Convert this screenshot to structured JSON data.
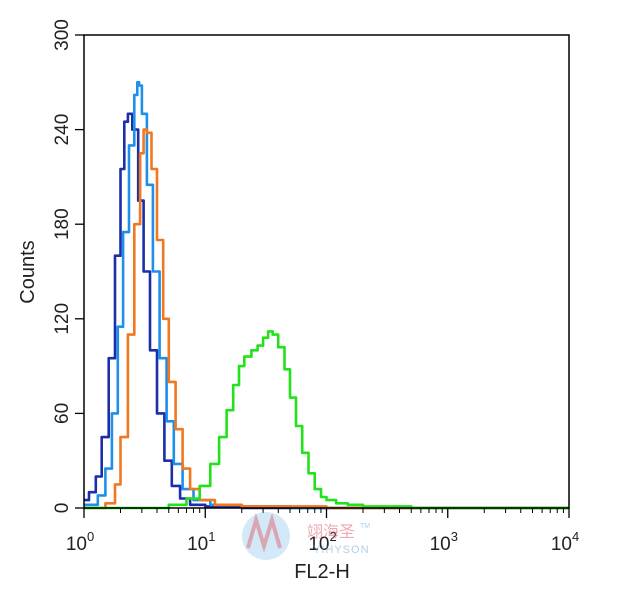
{
  "chart_data": {
    "type": "line",
    "xlabel": "FL2-H",
    "ylabel": "Counts",
    "x_scale": "log",
    "xlim": [
      1,
      10000
    ],
    "ylim": [
      0,
      300
    ],
    "x_ticks": [
      {
        "base": "10",
        "exp": "0",
        "value": 1
      },
      {
        "base": "10",
        "exp": "1",
        "value": 10
      },
      {
        "base": "10",
        "exp": "2",
        "value": 100
      },
      {
        "base": "10",
        "exp": "3",
        "value": 1000
      },
      {
        "base": "10",
        "exp": "4",
        "value": 10000
      }
    ],
    "y_ticks": [
      {
        "label": "0",
        "value": 0
      },
      {
        "label": "60",
        "value": 60
      },
      {
        "label": "120",
        "value": 120
      },
      {
        "label": "180",
        "value": 180
      },
      {
        "label": "240",
        "value": 240
      },
      {
        "label": "300",
        "value": 300
      }
    ],
    "grid": false,
    "legend": "none",
    "series": [
      {
        "color": "#1a2fa8",
        "x": [
          1.0,
          1.1,
          1.25,
          1.4,
          1.6,
          1.8,
          2.0,
          2.15,
          2.3,
          2.5,
          2.8,
          3.1,
          3.5,
          4.0,
          4.6,
          5.3,
          6.2,
          7.5,
          10,
          20,
          100,
          10000
        ],
        "y": [
          5,
          10,
          20,
          45,
          95,
          160,
          215,
          245,
          250,
          240,
          195,
          150,
          100,
          60,
          30,
          14,
          6,
          2,
          1,
          0,
          0,
          0
        ]
      },
      {
        "color": "#1e90ea",
        "x": [
          1.0,
          1.3,
          1.5,
          1.7,
          1.9,
          2.1,
          2.35,
          2.6,
          2.75,
          2.85,
          3.0,
          3.3,
          3.7,
          4.2,
          4.8,
          5.5,
          6.5,
          8,
          11,
          20,
          50,
          10000
        ],
        "y": [
          2,
          8,
          25,
          60,
          115,
          175,
          230,
          262,
          270,
          268,
          250,
          205,
          150,
          95,
          55,
          28,
          12,
          5,
          2,
          1,
          0,
          0
        ]
      },
      {
        "color": "#f07820",
        "x": [
          1.0,
          1.5,
          1.8,
          2.0,
          2.3,
          2.6,
          2.9,
          3.1,
          3.3,
          3.6,
          4.0,
          4.5,
          5.0,
          5.7,
          6.5,
          7.5,
          9,
          12,
          20,
          100,
          10000
        ],
        "y": [
          0,
          3,
          15,
          45,
          110,
          180,
          225,
          240,
          238,
          215,
          170,
          120,
          80,
          50,
          25,
          12,
          5,
          2,
          1,
          0,
          0
        ]
      },
      {
        "color": "#22e21b",
        "x": [
          1,
          3,
          5,
          7,
          9,
          11,
          13,
          15,
          17,
          19,
          21,
          24,
          27,
          30,
          33,
          36,
          40,
          45,
          50,
          56,
          63,
          71,
          80,
          90,
          100,
          120,
          150,
          200,
          300,
          500,
          10000
        ],
        "y": [
          0,
          0,
          2,
          6,
          14,
          28,
          45,
          62,
          78,
          90,
          96,
          100,
          103,
          108,
          112,
          110,
          102,
          88,
          70,
          52,
          35,
          22,
          12,
          7,
          5,
          3,
          2,
          1,
          1,
          0,
          0
        ]
      }
    ]
  },
  "watermark": {
    "cn": "翊海圣",
    "en": "YIHYSON",
    "tm": "TM"
  }
}
